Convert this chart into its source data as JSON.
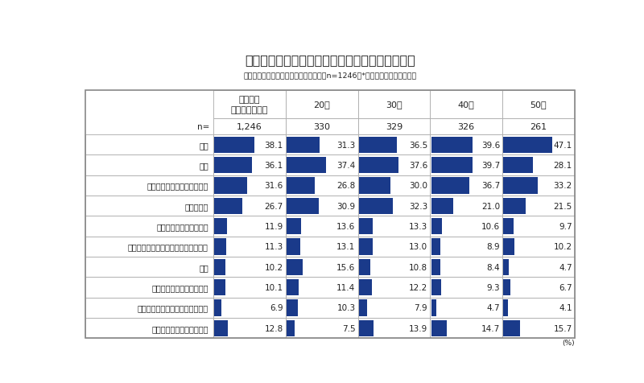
{
  "title": "【賃上げによって増えたお金を何に使いたいか】",
  "subtitle": "基本給が上がった人ベース／複数回答／n=1246　*全体スコアで降順ソート",
  "columns": [
    "基本給が\n上がった人全体",
    "20代",
    "30代",
    "40代",
    "50代"
  ],
  "n_values": [
    "1,246",
    "330",
    "329",
    "326",
    "261"
  ],
  "rows": [
    {
      "label": "貯蓄",
      "values": [
        38.1,
        31.3,
        36.5,
        39.6,
        47.1
      ]
    },
    {
      "label": "投資",
      "values": [
        36.1,
        37.4,
        37.6,
        39.7,
        28.1
      ]
    },
    {
      "label": "生活費（家族の扶養費含む）",
      "values": [
        31.6,
        26.8,
        30.0,
        36.7,
        33.2
      ]
    },
    {
      "label": "娯楽や趣味",
      "values": [
        26.7,
        30.9,
        32.3,
        21.0,
        21.5
      ]
    },
    {
      "label": "自己啓発やスキルアップ",
      "values": [
        11.9,
        13.6,
        13.3,
        10.6,
        9.7
      ]
    },
    {
      "label": "保健・医療費（健康維持や治療など）",
      "values": [
        11.3,
        13.1,
        13.0,
        8.9,
        10.2
      ]
    },
    {
      "label": "家賃",
      "values": [
        10.2,
        15.6,
        10.8,
        8.4,
        4.7
      ]
    },
    {
      "label": "住宅の購入やローンの返済",
      "values": [
        10.1,
        11.4,
        12.2,
        9.3,
        6.7
      ]
    },
    {
      "label": "住宅以外のローンや借入金の返済",
      "values": [
        6.9,
        10.3,
        7.9,
        4.7,
        4.1
      ]
    },
    {
      "label": "特に用途は決まっていない",
      "values": [
        12.8,
        7.5,
        13.9,
        14.7,
        15.7
      ]
    }
  ],
  "bar_color": "#1a3a8a",
  "bar_max": 50,
  "text_color": "#222222",
  "border_color": "#aaaaaa",
  "unit_label": "(%)"
}
